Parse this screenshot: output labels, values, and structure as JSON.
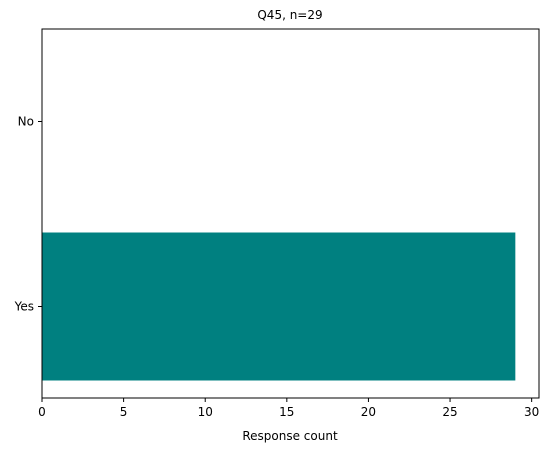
{
  "chart_data": {
    "type": "bar",
    "orientation": "horizontal",
    "title": "Q45, n=29",
    "xlabel": "Response count",
    "ylabel": "",
    "categories": [
      "No",
      "Yes"
    ],
    "values": [
      0,
      29
    ],
    "xlim": [
      0,
      30.45
    ],
    "x_ticks": [
      0,
      5,
      10,
      15,
      20,
      25,
      30
    ],
    "bar_color": "#008080",
    "grid": false,
    "legend": "none"
  }
}
